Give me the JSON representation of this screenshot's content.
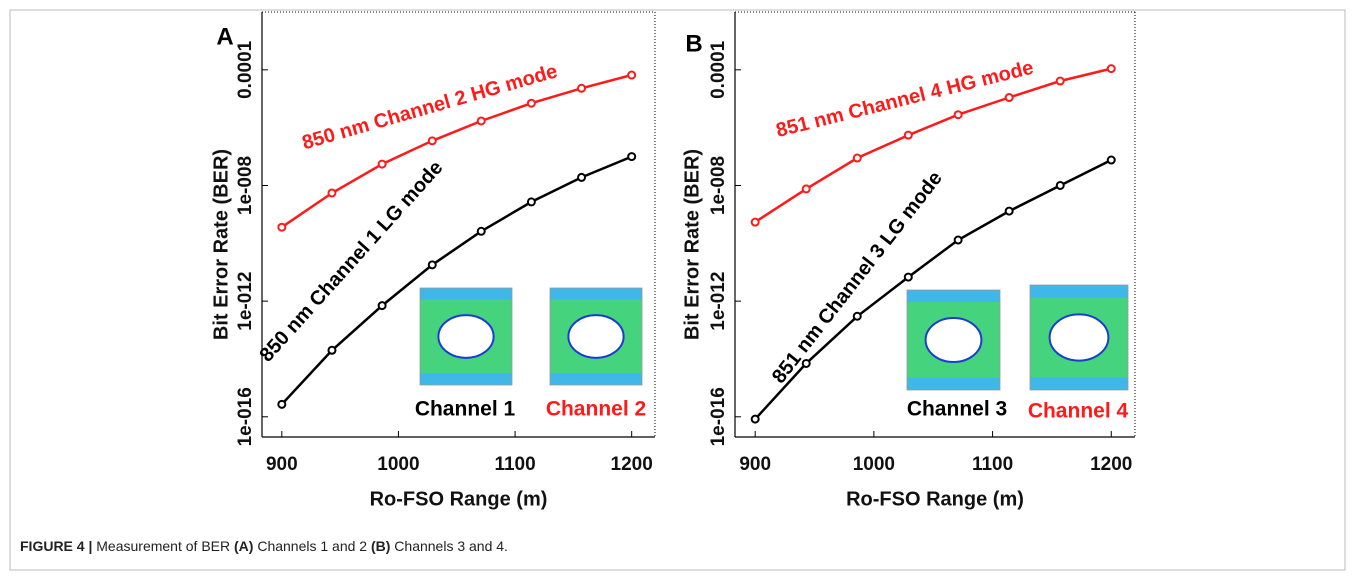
{
  "chart_data": [
    {
      "type": "line",
      "panel": "A",
      "xlabel": "Ro-FSO Range (m)",
      "ylabel": "Bit Error Rate (BER)",
      "x": [
        900,
        943,
        986,
        1029,
        1071,
        1114,
        1157,
        1200
      ],
      "xlim": [
        883,
        1220
      ],
      "xticks": [
        900,
        1000,
        1100,
        1200
      ],
      "yscale": "log",
      "ylim": [
        2e-17,
        0.01
      ],
      "yticks": [
        {
          "value": 1e-16,
          "label": "1e-016"
        },
        {
          "value": 1e-12,
          "label": "1e-012"
        },
        {
          "value": 1e-08,
          "label": "1e-008"
        },
        {
          "value": 0.0001,
          "label": "0.0001"
        }
      ],
      "series": [
        {
          "name": "850 nm Channel 2 HG mode",
          "color": "#ff1a1a",
          "values": [
            3.6e-10,
            5.5e-09,
            5.5e-08,
            3.5e-07,
            1.7e-06,
            7e-06,
            2.3e-05,
            6.6e-05
          ]
        },
        {
          "name": "850 nm Channel 1 LG mode",
          "color": "#000000",
          "values": [
            2.7e-16,
            2e-14,
            7e-13,
            1.8e-11,
            2.6e-10,
            2.7e-09,
            1.9e-08,
            1e-07
          ]
        }
      ],
      "inset_labels": [
        {
          "text": "Channel 1",
          "color": "#000000"
        },
        {
          "text": "Channel 2",
          "color": "#ff1a1a"
        }
      ]
    },
    {
      "type": "line",
      "panel": "B",
      "xlabel": "Ro-FSO Range (m)",
      "ylabel": "Bit Error Rate (BER)",
      "x": [
        900,
        943,
        986,
        1029,
        1071,
        1114,
        1157,
        1200
      ],
      "xlim": [
        883,
        1220
      ],
      "xticks": [
        900,
        1000,
        1100,
        1200
      ],
      "yscale": "log",
      "ylim": [
        2e-17,
        0.01
      ],
      "yticks": [
        {
          "value": 1e-16,
          "label": "1e-016"
        },
        {
          "value": 1e-12,
          "label": "1e-012"
        },
        {
          "value": 1e-08,
          "label": "1e-008"
        },
        {
          "value": 0.0001,
          "label": "0.0001"
        }
      ],
      "series": [
        {
          "name": "851 nm Channel 4 HG mode",
          "color": "#ff1a1a",
          "values": [
            5.4e-10,
            7.6e-09,
            8.9e-08,
            5.5e-07,
            2.8e-06,
            1.1e-05,
            4.1e-05,
            0.00011
          ]
        },
        {
          "name": "851 nm Channel 3 LG mode",
          "color": "#000000",
          "values": [
            8.3e-17,
            7e-15,
            3e-13,
            6.8e-12,
            1.3e-10,
            1.3e-09,
            1e-08,
            7.6e-08
          ]
        }
      ],
      "inset_labels": [
        {
          "text": "Channel 3",
          "color": "#000000"
        },
        {
          "text": "Channel 4",
          "color": "#ff1a1a"
        }
      ]
    }
  ],
  "caption": {
    "label": "FIGURE 4 |",
    "text1": " Measurement of BER ",
    "a": "(A)",
    "text2": " Channels 1 and 2 ",
    "b": "(B)",
    "text3": " Channels 3 and 4."
  }
}
